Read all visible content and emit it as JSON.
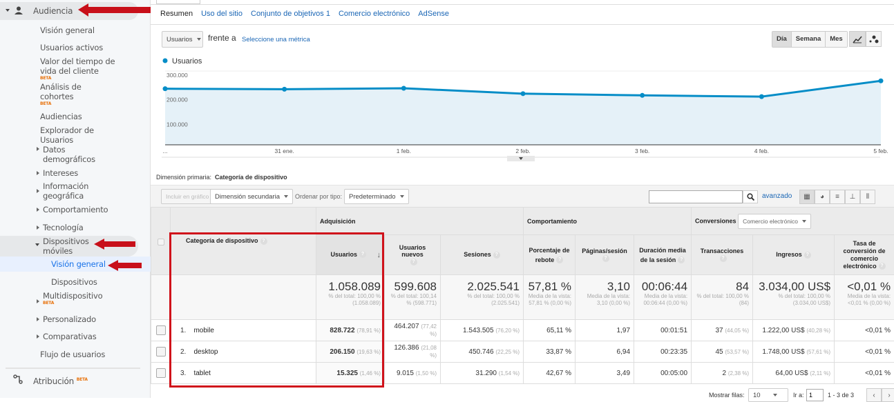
{
  "sidebar": {
    "section": "Audiencia",
    "items": [
      {
        "label": "Visión general"
      },
      {
        "label": "Usuarios activos"
      },
      {
        "label": "Valor del tiempo de vida del cliente",
        "badge": "BETA"
      },
      {
        "label": "Análisis de cohortes",
        "badge": "BETA"
      },
      {
        "label": "Audiencias"
      },
      {
        "label": "Explorador de Usuarios"
      },
      {
        "label": "Datos demográficos"
      },
      {
        "label": "Intereses"
      },
      {
        "label": "Información geográfica"
      },
      {
        "label": "Comportamiento"
      },
      {
        "label": "Tecnología"
      },
      {
        "label": "Dispositivos móviles"
      },
      {
        "label": "Visión general"
      },
      {
        "label": "Dispositivos"
      },
      {
        "label": "Multidispositivo",
        "badge": "BETA"
      },
      {
        "label": "Personalizado"
      },
      {
        "label": "Comparativas"
      },
      {
        "label": "Flujo de usuarios"
      }
    ],
    "attribution": {
      "label": "Atribución",
      "badge": "BETA"
    },
    "active_color": "#1a73e8"
  },
  "tabs": [
    "Resumen",
    "Uso del sitio",
    "Conjunto de objetivos 1",
    "Comercio electrónico",
    "AdSense"
  ],
  "controls": {
    "metric": "Usuarios",
    "versus": "frente a",
    "select_metric": "Seleccione una métrica",
    "periods": [
      "Día",
      "Semana",
      "Mes"
    ],
    "active_period": "Día"
  },
  "chart_data": {
    "type": "area",
    "series": [
      {
        "name": "Usuarios",
        "color": "#058dc7",
        "values": [
          228000,
          226000,
          230000,
          208000,
          201000,
          196000,
          260000
        ]
      }
    ],
    "x": [
      "...",
      "31 ene.",
      "1 feb.",
      "2 feb.",
      "3 feb.",
      "4 feb.",
      "5 feb."
    ],
    "x_tick_labels": [
      "...",
      "31 ene.",
      "1 feb.",
      "2 feb.",
      "3 feb.",
      "4 feb.",
      "5 feb."
    ],
    "y_tick_labels": [
      "300.000",
      "200.000",
      "100.000"
    ],
    "ylim": [
      0,
      300000
    ],
    "grid": true,
    "legend": "top-left"
  },
  "dimension": {
    "label": "Dimensión primaria:",
    "value": "Categoría de dispositivo"
  },
  "toolbar": {
    "plot": "Incluir en gráfico",
    "secondary": "Dimensión secundaria",
    "sort_label": "Ordenar por tipo:",
    "sort": "Predeterminado",
    "search": "",
    "advanced": "avanzado"
  },
  "table": {
    "groups": {
      "acq": "Adquisición",
      "beh": "Comportamiento",
      "conv": "Conversiones",
      "conv_select": "Comercio electrónico"
    },
    "headers": [
      "Categoría de dispositivo",
      "Usuarios",
      "Usuarios nuevos",
      "Sesiones",
      "Porcentaje de rebote",
      "Páginas/sesión",
      "Duración media de la sesión",
      "Transacciones",
      "Ingresos",
      "Tasa de conversión de comercio electrónico"
    ],
    "totals": [
      {
        "v": "1.058.089",
        "s": "% del total: 100,00 % (1.058.089)"
      },
      {
        "v": "599.608",
        "s": "% del total: 100,14 % (598.771)"
      },
      {
        "v": "2.025.541",
        "s": "% del total: 100,00 % (2.025.541)"
      },
      {
        "v": "57,81 %",
        "s": "Media de la vista: 57,81 % (0,00 %)"
      },
      {
        "v": "3,10",
        "s": "Media de la vista: 3,10 (0,00 %)"
      },
      {
        "v": "00:06:44",
        "s": "Media de la vista: 00:06:44 (0,00 %)"
      },
      {
        "v": "84",
        "s": "% del total: 100,00 % (84)"
      },
      {
        "v": "3.034,00 US$",
        "s": "% del total: 100,00 % (3.034,00 US$)"
      },
      {
        "v": "<0,01 %",
        "s": "Media de la vista: <0,01 % (0,00 %)"
      }
    ],
    "rows": [
      {
        "n": "1.",
        "name": "mobile",
        "c": [
          [
            "828.722",
            "(78,91 %)"
          ],
          [
            "464.207",
            "(77,42 %)"
          ],
          [
            "1.543.505",
            "(76,20 %)"
          ],
          [
            "65,11 %",
            ""
          ],
          [
            "1,97",
            ""
          ],
          [
            "00:01:51",
            ""
          ],
          [
            "37",
            "(44,05 %)"
          ],
          [
            "1.222,00 US$",
            "(40,28 %)"
          ],
          [
            "<0,01 %",
            ""
          ]
        ]
      },
      {
        "n": "2.",
        "name": "desktop",
        "c": [
          [
            "206.150",
            "(19,63 %)"
          ],
          [
            "126.386",
            "(21,08 %)"
          ],
          [
            "450.746",
            "(22,25 %)"
          ],
          [
            "33,87 %",
            ""
          ],
          [
            "6,94",
            ""
          ],
          [
            "00:23:35",
            ""
          ],
          [
            "45",
            "(53,57 %)"
          ],
          [
            "1.748,00 US$",
            "(57,61 %)"
          ],
          [
            "<0,01 %",
            ""
          ]
        ]
      },
      {
        "n": "3.",
        "name": "tablet",
        "c": [
          [
            "15.325",
            "(1,46 %)"
          ],
          [
            "9.015",
            "(1,50 %)"
          ],
          [
            "31.290",
            "(1,54 %)"
          ],
          [
            "42,67 %",
            ""
          ],
          [
            "3,49",
            ""
          ],
          [
            "00:05:00",
            ""
          ],
          [
            "2",
            "(2,38 %)"
          ],
          [
            "64,00 US$",
            "(2,11 %)"
          ],
          [
            "<0,01 %",
            ""
          ]
        ]
      }
    ]
  },
  "pagination": {
    "rows_label": "Mostrar filas:",
    "rows": "10",
    "goto_label": "Ir a:",
    "goto": "1",
    "range": "1 - 3 de 3"
  },
  "annotation_color": "#d0121b"
}
